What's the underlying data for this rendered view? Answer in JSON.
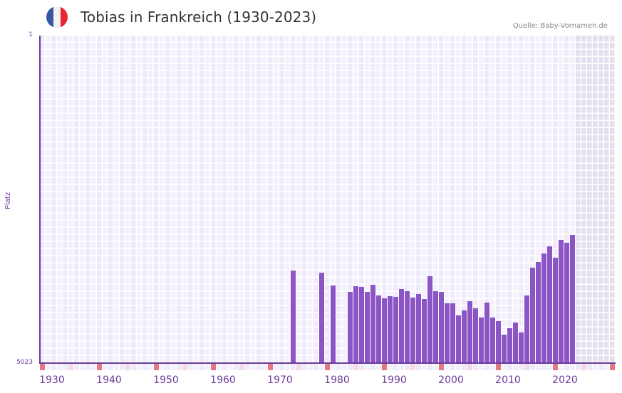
{
  "header": {
    "title": "Tobias in Frankreich (1930-2023)",
    "source": "Quelle: Baby-Vornamen.de",
    "flag_colors": [
      "#3a55a4",
      "#f2f2f2",
      "#e8262f"
    ]
  },
  "colors": {
    "bar": "#8b55c6",
    "axis": "#6a3d9a",
    "grid_a": "#efeaf9",
    "grid_b": "#f4f1fc",
    "future_shade": "#e4e0ee",
    "decade_mark": "#e57780",
    "half_decade_mark": "#f5d9e3"
  },
  "chart_data": {
    "type": "bar",
    "title": "Tobias in Frankreich (1930-2023)",
    "xlabel": "",
    "ylabel": "Platz",
    "y_scale": "log (inverted rank)",
    "ylim": [
      5023,
      1
    ],
    "y_ticks": [
      "1",
      "5023"
    ],
    "x_ticks": [
      "1930",
      "1940",
      "1950",
      "1960",
      "1970",
      "1980",
      "1990",
      "2000",
      "2010",
      "2020"
    ],
    "x_range": [
      1928,
      2028
    ],
    "grid": true,
    "legend": null,
    "shaded_future_from": 2022,
    "points": [
      {
        "year": 1972,
        "rank": 452
      },
      {
        "year": 1977,
        "rank": 478
      },
      {
        "year": 1979,
        "rank": 666
      },
      {
        "year": 1982,
        "rank": 786
      },
      {
        "year": 1983,
        "rank": 679
      },
      {
        "year": 1984,
        "rank": 692
      },
      {
        "year": 1985,
        "rank": 786
      },
      {
        "year": 1986,
        "rank": 653
      },
      {
        "year": 1987,
        "rank": 864
      },
      {
        "year": 1988,
        "rank": 930
      },
      {
        "year": 1989,
        "rank": 880
      },
      {
        "year": 1990,
        "rank": 897
      },
      {
        "year": 1991,
        "rank": 731
      },
      {
        "year": 1992,
        "rank": 772
      },
      {
        "year": 1993,
        "rank": 913
      },
      {
        "year": 1994,
        "rank": 832
      },
      {
        "year": 1995,
        "rank": 947
      },
      {
        "year": 1996,
        "rank": 526
      },
      {
        "year": 1997,
        "rank": 772
      },
      {
        "year": 1998,
        "rank": 786
      },
      {
        "year": 1999,
        "rank": 1057
      },
      {
        "year": 2000,
        "rank": 1057
      },
      {
        "year": 2001,
        "rank": 1453
      },
      {
        "year": 2002,
        "rank": 1276
      },
      {
        "year": 2003,
        "rank": 1000
      },
      {
        "year": 2004,
        "rank": 1203
      },
      {
        "year": 2005,
        "rank": 1538
      },
      {
        "year": 2006,
        "rank": 1038
      },
      {
        "year": 2007,
        "rank": 1538
      },
      {
        "year": 2008,
        "rank": 1688
      },
      {
        "year": 2009,
        "rank": 2400
      },
      {
        "year": 2010,
        "rank": 2032
      },
      {
        "year": 2011,
        "rank": 1752
      },
      {
        "year": 2012,
        "rank": 2271
      },
      {
        "year": 2013,
        "rank": 864
      },
      {
        "year": 2014,
        "rank": 420
      },
      {
        "year": 2015,
        "rank": 362
      },
      {
        "year": 2016,
        "rank": 290
      },
      {
        "year": 2017,
        "rank": 241
      },
      {
        "year": 2018,
        "rank": 324
      },
      {
        "year": 2019,
        "rank": 204
      },
      {
        "year": 2020,
        "rank": 220
      },
      {
        "year": 2021,
        "rank": 179
      }
    ]
  },
  "axis": {
    "y_top_label": "1",
    "y_bottom_label": "5023",
    "y_title": "Platz"
  }
}
